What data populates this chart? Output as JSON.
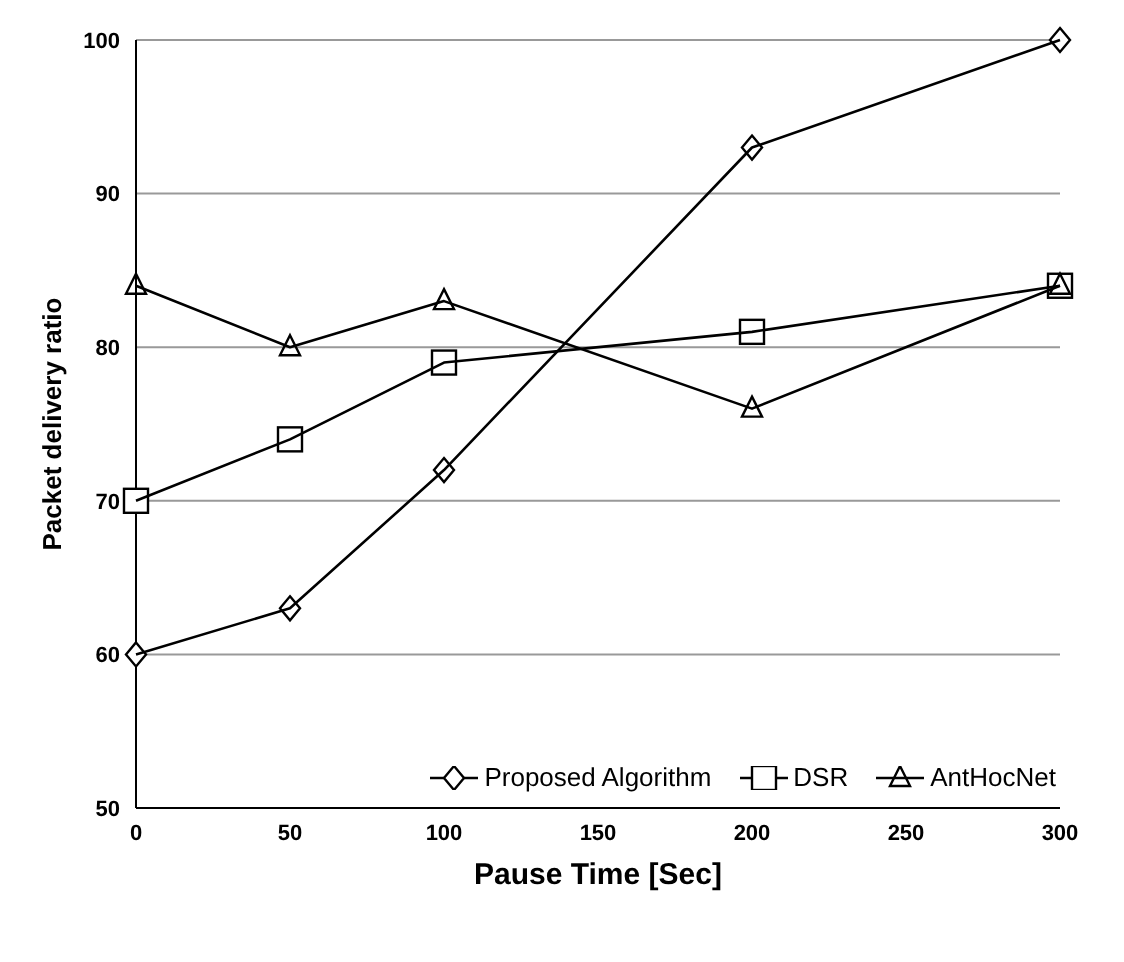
{
  "chart_data": {
    "type": "line",
    "xlabel": "Pause Time [Sec]",
    "ylabel": "Packet delivery ratio",
    "x": [
      0,
      50,
      100,
      200,
      300
    ],
    "series": [
      {
        "name": "Proposed Algorithm",
        "color": "#000000",
        "marker": "diamond",
        "values": [
          60,
          63,
          72,
          93,
          100
        ]
      },
      {
        "name": "DSR",
        "color": "#000000",
        "marker": "square",
        "values": [
          70,
          74,
          79,
          81,
          84
        ]
      },
      {
        "name": "AntHocNet",
        "color": "#000000",
        "marker": "triangle",
        "values": [
          84,
          80,
          83,
          76,
          84
        ]
      }
    ],
    "xlim": [
      0,
      300
    ],
    "xticks": [
      0,
      50,
      100,
      150,
      200,
      250,
      300
    ],
    "ylim": [
      50,
      100
    ],
    "yticks": [
      50,
      60,
      70,
      80,
      90,
      100
    ],
    "grid": "y",
    "legend": "bottom right",
    "line_style": "solid"
  }
}
